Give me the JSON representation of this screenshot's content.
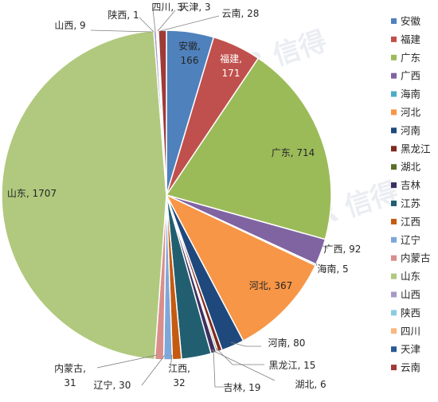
{
  "chart_data": {
    "type": "pie",
    "title": "",
    "legend_position": "right",
    "start_angle_deg": 0,
    "direction": "clockwise",
    "categories": [
      "安徽",
      "福建",
      "广东",
      "广西",
      "海南",
      "河北",
      "河南",
      "黑龙江",
      "湖北",
      "吉林",
      "江苏",
      "江西",
      "辽宁",
      "内蒙古",
      "山东",
      "山西",
      "陕西",
      "四川",
      "天津",
      "云南"
    ],
    "values": [
      166,
      171,
      714,
      92,
      5,
      367,
      80,
      15,
      6,
      19,
      104,
      32,
      30,
      31,
      1707,
      9,
      1,
      3,
      3,
      28
    ],
    "labels": [
      "安徽, 166",
      "福建, 171",
      "广东, 714",
      "广西, 92",
      "海南, 5",
      "河北, 367",
      "河南, 80",
      "黑龙江, 15",
      "湖北, 6",
      "吉林, 19",
      "",
      "江西, 32",
      "辽宁, 30",
      "内蒙古, 31",
      "山东, 1707",
      "山西, 9",
      "陕西, 1",
      "四川, 3",
      "天津, 3",
      "云南, 28"
    ],
    "colors": [
      "#4f81bd",
      "#c0504d",
      "#9bbb59",
      "#8064a2",
      "#4bacc6",
      "#f79646",
      "#1f497d",
      "#7f2a1f",
      "#5a6f26",
      "#3e2f62",
      "#215f70",
      "#c55a11",
      "#7da7d9",
      "#da8e8b",
      "#b0c97e",
      "#a898c4",
      "#8ccde0",
      "#f9b880",
      "#2a5a96",
      "#9e3b38"
    ]
  },
  "watermark": "SINDER 信得"
}
